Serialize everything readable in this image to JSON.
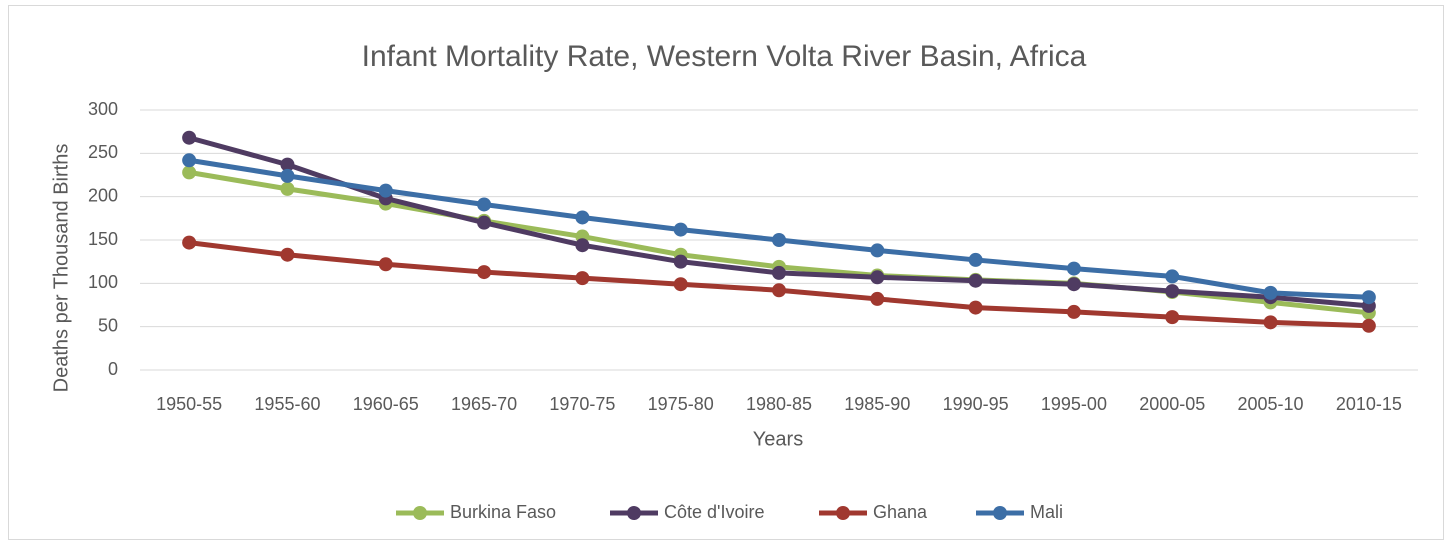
{
  "chart_data": {
    "type": "line",
    "title": "Infant Mortality Rate, Western Volta River Basin, Africa",
    "x_label": "Years",
    "y_label": "Deaths per Thousand Births",
    "categories": [
      "1950-55",
      "1955-60",
      "1960-65",
      "1965-70",
      "1970-75",
      "1975-80",
      "1980-85",
      "1985-90",
      "1990-95",
      "1995-00",
      "2000-05",
      "2005-10",
      "2010-15"
    ],
    "series": [
      {
        "name": "Burkina Faso",
        "color": "#9bbb59",
        "values": [
          228,
          209,
          192,
          172,
          154,
          133,
          119,
          109,
          104,
          100,
          90,
          78,
          66
        ]
      },
      {
        "name": "Côte d'Ivoire",
        "color": "#4f3b62",
        "values": [
          268,
          237,
          198,
          170,
          144,
          125,
          112,
          107,
          103,
          99,
          91,
          84,
          74
        ]
      },
      {
        "name": "Ghana",
        "color": "#a0382f",
        "values": [
          147,
          133,
          122,
          113,
          106,
          99,
          92,
          82,
          72,
          67,
          61,
          55,
          51
        ]
      },
      {
        "name": "Mali",
        "color": "#3c6ea6",
        "values": [
          242,
          224,
          207,
          191,
          176,
          162,
          150,
          138,
          127,
          117,
          108,
          89,
          84
        ]
      }
    ],
    "ylim": [
      0,
      300
    ],
    "yticks": [
      0,
      50,
      100,
      150,
      200,
      250,
      300
    ],
    "grid": true,
    "legend": "bottom"
  }
}
